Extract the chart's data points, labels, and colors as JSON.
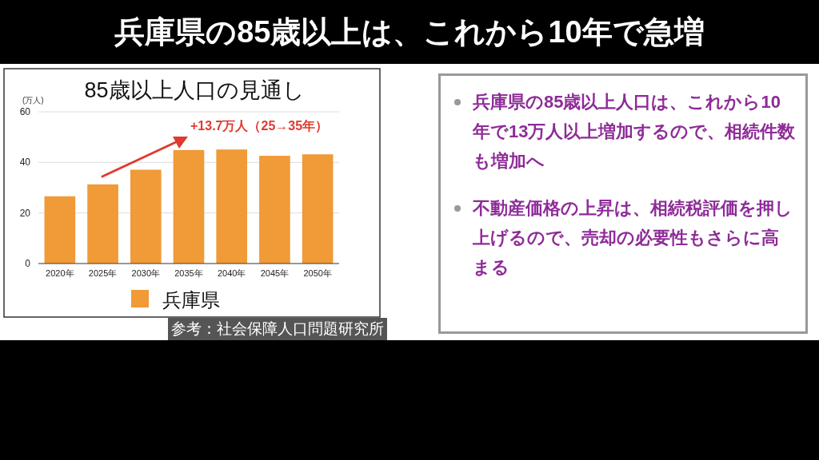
{
  "chart_data": [
    {
      "type": "bar",
      "title": "兵庫県の85歳以上は、これから10年で急増",
      "subtitle": "85歳以上人口の見通し",
      "ylabel": "(万人)",
      "categories": [
        "2020年",
        "2025年",
        "2030年",
        "2035年",
        "2040年",
        "2045年",
        "2050年"
      ],
      "series": [
        {
          "name": "兵庫県",
          "color": "#f09a38",
          "values": [
            26.6,
            31.3,
            37.1,
            44.9,
            45.1,
            42.6,
            43.2
          ]
        }
      ],
      "ylim": [
        0,
        60
      ],
      "yticks": [
        0,
        20,
        40,
        60
      ],
      "grid": "y",
      "legend": "bottom",
      "annotations": [
        "+13.7万人（25→35年）",
        "参考：社会保障人口問題研究所"
      ]
    },
    {
      "type": "other",
      "annotations": [
        "兵庫県の85歳以上人口は、これから10年で13万人以上増加するので、相続件数も増加へ",
        "不動産価格の上昇は、相続税評価を押し上げるので、売却の必要性もさらに高まる"
      ]
    }
  ]
}
